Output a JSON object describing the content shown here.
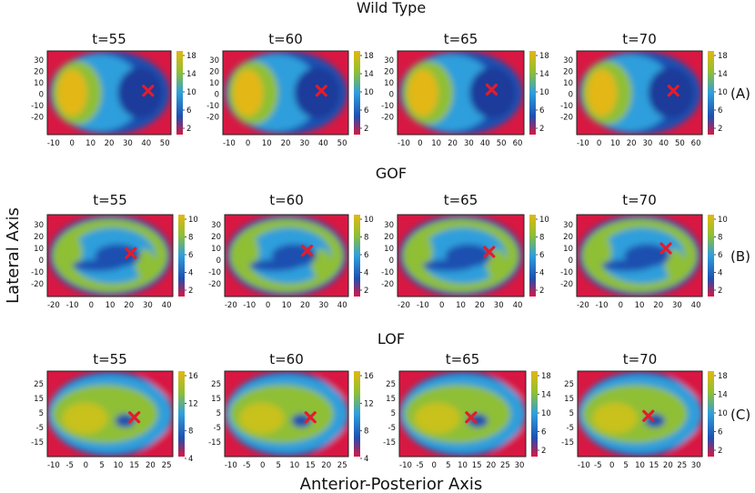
{
  "figure": {
    "xlabel": "Anterior-Posterior Axis",
    "ylabel": "Lateral Axis"
  },
  "rows": [
    {
      "title": "Wild Type",
      "tag": "(A)",
      "panels": [
        {
          "title": "t=55",
          "xticks": [
            "-10",
            "0",
            "10",
            "20",
            "30",
            "40",
            "50"
          ],
          "yticks": [
            "30",
            "20",
            "10",
            "0",
            "-10",
            "-20"
          ],
          "cbar": [
            "18",
            "14",
            "10",
            "6",
            "2"
          ],
          "marker": {
            "x": 41,
            "y": 3
          }
        },
        {
          "title": "t=60",
          "xticks": [
            "-10",
            "0",
            "10",
            "20",
            "30",
            "40",
            "50"
          ],
          "yticks": [
            "30",
            "20",
            "10",
            "0",
            "-10",
            "-20"
          ],
          "cbar": [
            "18",
            "14",
            "10",
            "6",
            "2"
          ],
          "marker": {
            "x": 39,
            "y": 3
          }
        },
        {
          "title": "t=65",
          "xticks": [
            "-10",
            "0",
            "10",
            "20",
            "30",
            "40",
            "50",
            "60"
          ],
          "yticks": [
            "30",
            "20",
            "10",
            "0",
            "-10",
            "-20"
          ],
          "cbar": [
            "18",
            "14",
            "10",
            "6",
            "2"
          ],
          "marker": {
            "x": 44,
            "y": 4
          }
        },
        {
          "title": "t=70",
          "xticks": [
            "-10",
            "0",
            "10",
            "20",
            "30",
            "40",
            "50",
            "60"
          ],
          "yticks": [
            "30",
            "20",
            "10",
            "0",
            "-10",
            "-20"
          ],
          "cbar": [
            "18",
            "14",
            "10",
            "6",
            "2"
          ],
          "marker": {
            "x": 46,
            "y": 3
          }
        }
      ]
    },
    {
      "title": "GOF",
      "tag": "(B)",
      "panels": [
        {
          "title": "t=55",
          "xticks": [
            "-20",
            "-10",
            "0",
            "10",
            "20",
            "30",
            "40"
          ],
          "yticks": [
            "30",
            "20",
            "10",
            "0",
            "-10",
            "-20"
          ],
          "cbar": [
            "10",
            "8",
            "6",
            "4",
            "2"
          ],
          "marker": {
            "x": 21,
            "y": 6
          }
        },
        {
          "title": "t=60",
          "xticks": [
            "-20",
            "-10",
            "0",
            "10",
            "20",
            "30",
            "40"
          ],
          "yticks": [
            "30",
            "20",
            "10",
            "0",
            "-10",
            "-20"
          ],
          "cbar": [
            "10",
            "8",
            "6",
            "4",
            "2"
          ],
          "marker": {
            "x": 21,
            "y": 8
          }
        },
        {
          "title": "t=65",
          "xticks": [
            "-20",
            "-10",
            "0",
            "10",
            "20",
            "30",
            "40"
          ],
          "yticks": [
            "30",
            "20",
            "10",
            "0",
            "-10",
            "-20"
          ],
          "cbar": [
            "10",
            "8",
            "6",
            "4",
            "2"
          ],
          "marker": {
            "x": 25,
            "y": 7
          }
        },
        {
          "title": "t=70",
          "xticks": [
            "-20",
            "-10",
            "0",
            "10",
            "20",
            "30",
            "40"
          ],
          "yticks": [
            "30",
            "20",
            "10",
            "0",
            "-10",
            "-20"
          ],
          "cbar": [
            "10",
            "8",
            "6",
            "4",
            "2"
          ],
          "marker": {
            "x": 24,
            "y": 10
          }
        }
      ]
    },
    {
      "title": "LOF",
      "tag": "(C)",
      "panels": [
        {
          "title": "t=55",
          "xticks": [
            "-10",
            "-5",
            "0",
            "5",
            "10",
            "15",
            "20",
            "25"
          ],
          "yticks": [
            "25",
            "15",
            "5",
            "-5",
            "-15"
          ],
          "cbar": [
            "16",
            "12",
            "8",
            "4"
          ],
          "marker": {
            "x": 15,
            "y": 2
          }
        },
        {
          "title": "t=60",
          "xticks": [
            "-10",
            "-5",
            "0",
            "5",
            "10",
            "15",
            "20",
            "25"
          ],
          "yticks": [
            "25",
            "15",
            "5",
            "-5",
            "-15"
          ],
          "cbar": [
            "16",
            "12",
            "8",
            "4"
          ],
          "marker": {
            "x": 15,
            "y": 2
          }
        },
        {
          "title": "t=65",
          "xticks": [
            "-10",
            "-5",
            "0",
            "5",
            "10",
            "15",
            "20",
            "25",
            "30"
          ],
          "yticks": [
            "25",
            "15",
            "5",
            "-5",
            "-15"
          ],
          "cbar": [
            "18",
            "14",
            "10",
            "6",
            "2"
          ],
          "marker": {
            "x": 13,
            "y": 2
          }
        },
        {
          "title": "t=70",
          "xticks": [
            "-10",
            "-5",
            "0",
            "5",
            "10",
            "15",
            "20",
            "25",
            "30"
          ],
          "yticks": [
            "25",
            "15",
            "5",
            "-5",
            "-15"
          ],
          "cbar": [
            "18",
            "14",
            "10",
            "6",
            "2"
          ],
          "marker": {
            "x": 13,
            "y": 3
          }
        }
      ]
    }
  ],
  "colors": {
    "high": "#e3b712",
    "mid_high": "#8fbf34",
    "mid": "#2f9fdc",
    "mid_low": "#1f4fb0",
    "low": "#d81842",
    "marker": "#e31c2c"
  }
}
